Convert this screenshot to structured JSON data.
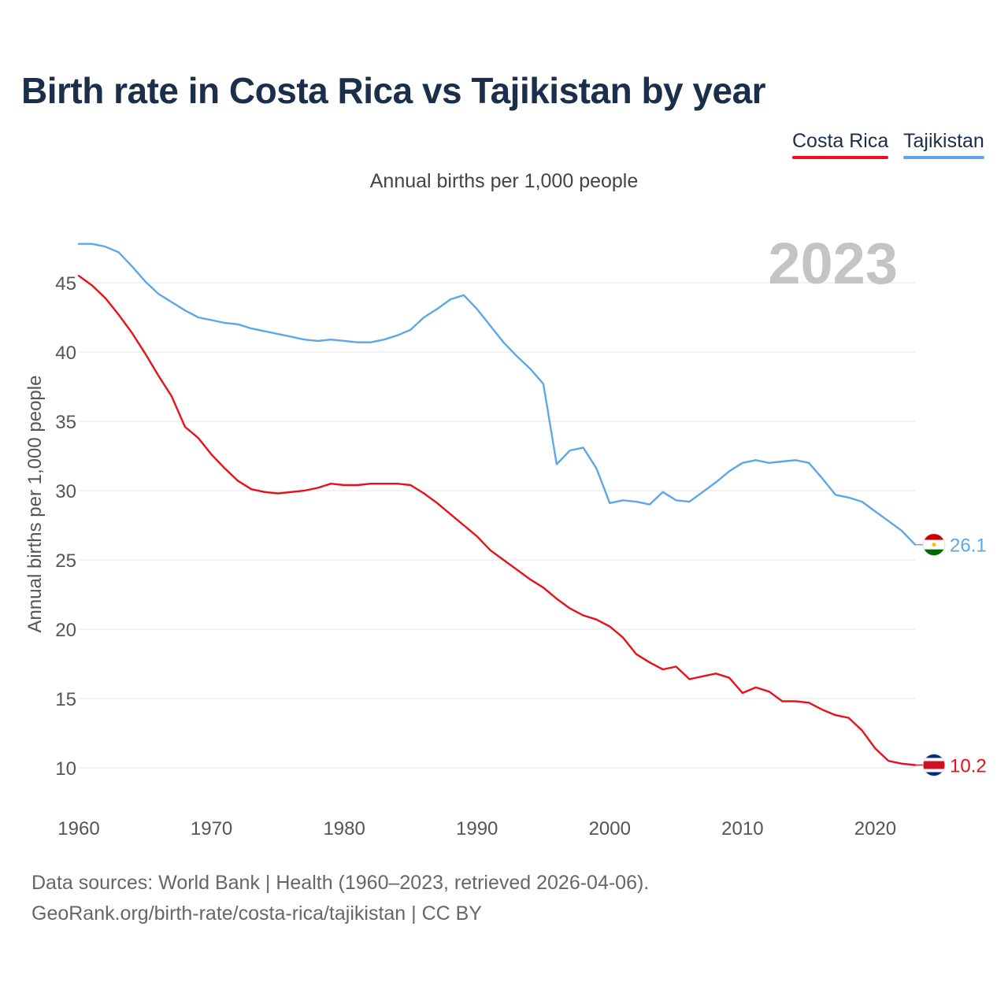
{
  "title": "Birth rate in Costa Rica vs Tajikistan by year",
  "subtitle": "Annual births per 1,000 people",
  "legend": [
    {
      "label": "Costa Rica",
      "color": "#e8111b"
    },
    {
      "label": "Tajikistan",
      "color": "#5ea7e6"
    }
  ],
  "footer": {
    "source": "Data sources: World Bank | Health (1960–2023, retrieved 2026-04-06).",
    "credit": "GeoRank.org/birth-rate/costa-rica/tajikistan | CC BY"
  },
  "chart_data": {
    "type": "line",
    "title": "Birth rate in Costa Rica vs Tajikistan by year",
    "subtitle": "Annual births per 1,000 people",
    "xlabel": "",
    "ylabel": "Annual births per 1,000 people",
    "year_label": "2023",
    "xlim": [
      1960,
      2023
    ],
    "ylim": [
      8,
      48
    ],
    "x_ticks": [
      1960,
      1970,
      1980,
      1990,
      2000,
      2010,
      2020
    ],
    "y_ticks": [
      10,
      15,
      20,
      25,
      30,
      35,
      40,
      45
    ],
    "grid": true,
    "legend_position": "top-right",
    "x": [
      1960,
      1961,
      1962,
      1963,
      1964,
      1965,
      1966,
      1967,
      1968,
      1969,
      1970,
      1971,
      1972,
      1973,
      1974,
      1975,
      1976,
      1977,
      1978,
      1979,
      1980,
      1981,
      1982,
      1983,
      1984,
      1985,
      1986,
      1987,
      1988,
      1989,
      1990,
      1991,
      1992,
      1993,
      1994,
      1995,
      1996,
      1997,
      1998,
      1999,
      2000,
      2001,
      2002,
      2003,
      2004,
      2005,
      2006,
      2007,
      2008,
      2009,
      2010,
      2011,
      2012,
      2013,
      2014,
      2015,
      2016,
      2017,
      2018,
      2019,
      2020,
      2021,
      2022,
      2023
    ],
    "series": [
      {
        "name": "Costa Rica",
        "color": "#e8111b",
        "end_label": "10.2",
        "values": [
          45.5,
          44.8,
          43.9,
          42.7,
          41.4,
          39.9,
          38.3,
          36.8,
          34.6,
          33.8,
          32.6,
          31.6,
          30.7,
          30.1,
          29.9,
          29.8,
          29.9,
          30.0,
          30.2,
          30.5,
          30.4,
          30.4,
          30.5,
          30.5,
          30.5,
          30.4,
          29.8,
          29.1,
          28.3,
          27.5,
          26.7,
          25.7,
          25.0,
          24.3,
          23.6,
          23.0,
          22.2,
          21.5,
          21.0,
          20.7,
          20.2,
          19.4,
          18.2,
          17.6,
          17.1,
          17.3,
          16.4,
          16.6,
          16.8,
          16.5,
          15.4,
          15.8,
          15.5,
          14.8,
          14.8,
          14.7,
          14.2,
          13.8,
          13.6,
          12.7,
          11.4,
          10.5,
          10.3,
          10.2
        ]
      },
      {
        "name": "Tajikistan",
        "color": "#5ea7e6",
        "end_label": "26.1",
        "values": [
          47.8,
          47.8,
          47.6,
          47.2,
          46.2,
          45.1,
          44.2,
          43.6,
          43.0,
          42.5,
          42.3,
          42.1,
          42.0,
          41.7,
          41.5,
          41.3,
          41.1,
          40.9,
          40.8,
          40.9,
          40.8,
          40.7,
          40.7,
          40.9,
          41.2,
          41.6,
          42.5,
          43.1,
          43.8,
          44.1,
          43.1,
          41.9,
          40.7,
          39.7,
          38.8,
          37.7,
          31.9,
          32.9,
          33.1,
          31.6,
          29.1,
          29.3,
          29.2,
          29.0,
          29.9,
          29.3,
          29.2,
          29.9,
          30.6,
          31.4,
          32.0,
          32.2,
          32.0,
          32.1,
          32.2,
          32.0,
          30.9,
          29.7,
          29.5,
          29.2,
          28.5,
          27.8,
          27.1,
          26.1
        ]
      }
    ]
  }
}
